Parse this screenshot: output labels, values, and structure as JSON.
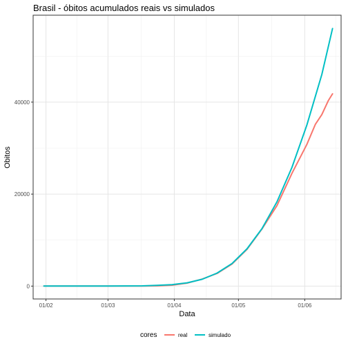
{
  "chart_data": {
    "type": "line",
    "title": "Brasil - óbitos acumulados reais vs simulados",
    "xlabel": "Data",
    "ylabel": "Obitos",
    "x_axis": {
      "type": "date",
      "range": [
        "2020-01-26",
        "2020-06-18"
      ],
      "ticks": [
        {
          "date": "2020-02-01",
          "label": "01/02"
        },
        {
          "date": "2020-03-01",
          "label": "01/03"
        },
        {
          "date": "2020-04-01",
          "label": "01/04"
        },
        {
          "date": "2020-05-01",
          "label": "01/05"
        },
        {
          "date": "2020-06-01",
          "label": "01/06"
        }
      ]
    },
    "y_axis": {
      "range": [
        -2800,
        58900
      ],
      "ticks": [
        0,
        20000,
        40000
      ]
    },
    "grid": true,
    "legend": {
      "title": "cores",
      "position": "bottom"
    },
    "series": [
      {
        "name": "real",
        "color": "#F8766D",
        "points": [
          [
            "2020-01-31",
            0
          ],
          [
            "2020-02-15",
            0
          ],
          [
            "2020-03-01",
            0
          ],
          [
            "2020-03-17",
            0
          ],
          [
            "2020-03-24",
            46
          ],
          [
            "2020-03-31",
            200
          ],
          [
            "2020-04-07",
            660
          ],
          [
            "2020-04-14",
            1530
          ],
          [
            "2020-04-21",
            2750
          ],
          [
            "2020-04-28",
            4800
          ],
          [
            "2020-05-05",
            8000
          ],
          [
            "2020-05-12",
            12400
          ],
          [
            "2020-05-19",
            17500
          ],
          [
            "2020-05-26",
            24500
          ],
          [
            "2020-06-02",
            30800
          ],
          [
            "2020-06-06",
            35200
          ],
          [
            "2020-06-09",
            37300
          ],
          [
            "2020-06-12",
            40300
          ],
          [
            "2020-06-14",
            41800
          ]
        ]
      },
      {
        "name": "simulado",
        "color": "#00BFC4",
        "points": [
          [
            "2020-01-31",
            0
          ],
          [
            "2020-02-15",
            0
          ],
          [
            "2020-03-01",
            0
          ],
          [
            "2020-03-17",
            50
          ],
          [
            "2020-03-24",
            150
          ],
          [
            "2020-03-31",
            330
          ],
          [
            "2020-04-07",
            720
          ],
          [
            "2020-04-14",
            1480
          ],
          [
            "2020-04-21",
            2830
          ],
          [
            "2020-04-28",
            4900
          ],
          [
            "2020-05-05",
            8100
          ],
          [
            "2020-05-12",
            12500
          ],
          [
            "2020-05-19",
            18300
          ],
          [
            "2020-05-26",
            25800
          ],
          [
            "2020-06-02",
            35000
          ],
          [
            "2020-06-09",
            46000
          ],
          [
            "2020-06-14",
            56000
          ]
        ]
      }
    ]
  }
}
